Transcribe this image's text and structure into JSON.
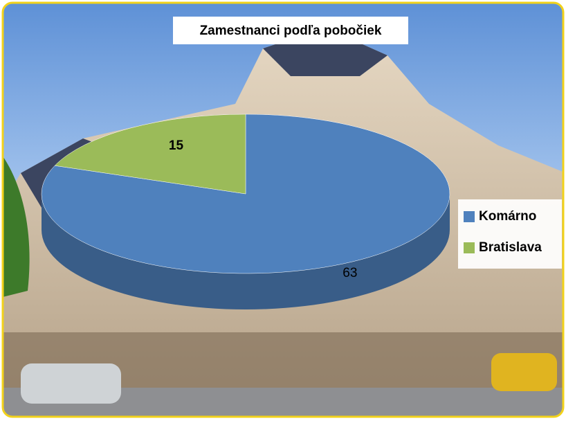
{
  "chart_data": {
    "type": "pie",
    "title": "Zamestnanci podľa pobočiek",
    "categories": [
      "Komárno",
      "Bratislava"
    ],
    "values": [
      63,
      15
    ],
    "colors": [
      "#4f81bd",
      "#9bbb59"
    ],
    "legend": "right"
  }
}
